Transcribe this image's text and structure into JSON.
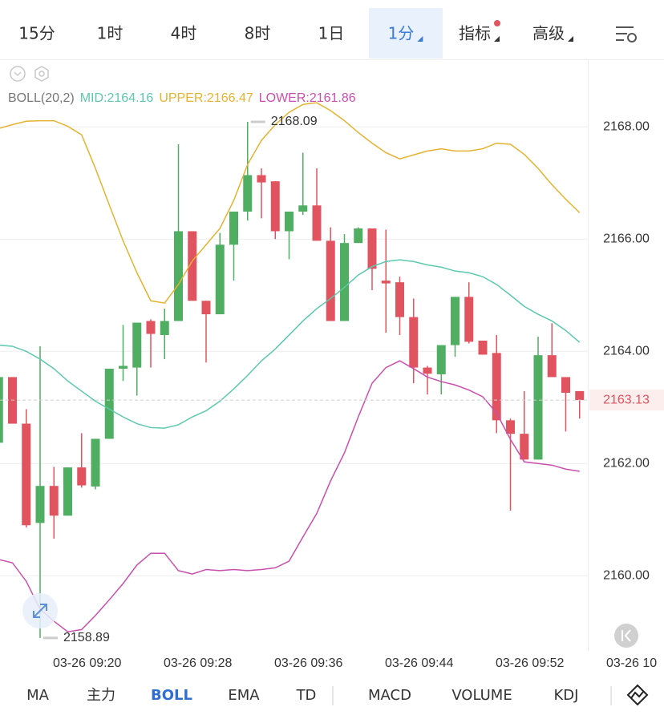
{
  "ui": {
    "top_tabs": [
      {
        "label": "15分"
      },
      {
        "label": "1时"
      },
      {
        "label": "4时"
      },
      {
        "label": "8时"
      },
      {
        "label": "1日"
      },
      {
        "label": "1分",
        "active": true,
        "menu": true
      },
      {
        "label": "指标",
        "menu": true,
        "badge": true
      },
      {
        "label": "高级",
        "menu": true
      }
    ],
    "bottom_tabs": [
      {
        "label": "MA"
      },
      {
        "label": "主力"
      },
      {
        "label": "BOLL",
        "active": true
      },
      {
        "label": "EMA"
      },
      {
        "label": "TD"
      },
      {
        "label": "MACD"
      },
      {
        "label": "VOLUME"
      },
      {
        "label": "KDJ"
      }
    ]
  },
  "chart_data": {
    "type": "candlestick",
    "legend_title": "BOLL(20,2)",
    "categories": [
      null,
      null,
      null,
      null,
      null,
      null,
      null,
      "03-26 09:20",
      null,
      null,
      null,
      null,
      null,
      null,
      null,
      "03-26 09:28",
      null,
      null,
      null,
      null,
      null,
      null,
      null,
      "03-26 09:36",
      null,
      null,
      null,
      null,
      null,
      null,
      null,
      "03-26 09:44",
      null,
      null,
      null,
      null,
      null,
      null,
      null,
      "03-26 09:52",
      null,
      null,
      null,
      null,
      null,
      null,
      null,
      "03-26 10"
    ],
    "open": [
      2162.37,
      2163.54,
      2162.71,
      2160.94,
      2161.6,
      2161.07,
      2161.93,
      2161.59,
      2162.44,
      2163.69,
      2163.71,
      2164.54,
      2164.29,
      2164.54,
      2166.14,
      2164.9,
      2164.66,
      2165.9,
      2166.49,
      2167.14,
      2167.03,
      2166.14,
      2166.49,
      2166.6,
      2165.97,
      2164.54,
      2165.93,
      2166.19,
      2165.26,
      2165.23,
      2164.61,
      2163.71,
      2163.59,
      2164.11,
      2164.97,
      2164.19,
      2163.97,
      2162.77,
      2162.53,
      2162.07,
      2163.93,
      2163.54,
      2163.29,
      null,
      null,
      null,
      null,
      null
    ],
    "high": [
      2163.54,
      2163.54,
      2162.97,
      2164.09,
      2161.94,
      2161.93,
      2162.54,
      2162.44,
      2163.69,
      2164.47,
      2164.51,
      2164.57,
      2164.76,
      2167.69,
      2166.14,
      2164.9,
      2166.11,
      2166.49,
      2168.09,
      2167.26,
      2167.03,
      2166.49,
      2167.54,
      2167.26,
      2166.21,
      2166.09,
      2166.21,
      2166.19,
      2166.17,
      2165.33,
      2164.94,
      2163.74,
      2164.11,
      2164.97,
      2165.23,
      2164.19,
      2164.29,
      2162.8,
      2163.29,
      2164.26,
      2164.5,
      2163.54,
      2163.29,
      null,
      null,
      null,
      null,
      null
    ],
    "low": [
      2162.37,
      2162.71,
      2160.86,
      2158.89,
      2160.66,
      2161.07,
      2161.57,
      2161.54,
      2162.44,
      2163.47,
      2163.21,
      2163.71,
      2163.86,
      2164.54,
      2164.9,
      2163.8,
      2164.66,
      2165.26,
      2166.33,
      2166.37,
      2166.0,
      2165.64,
      2166.43,
      2165.97,
      2164.54,
      2164.54,
      2165.93,
      2165.09,
      2164.33,
      2164.29,
      2163.43,
      2163.23,
      2163.23,
      2163.9,
      2164.14,
      2163.94,
      2162.54,
      2161.16,
      2162.07,
      2162.07,
      2163.54,
      2162.57,
      2162.8,
      null,
      null,
      null,
      null,
      null
    ],
    "close": [
      2163.54,
      2162.71,
      2160.9,
      2161.6,
      2161.07,
      2161.93,
      2161.61,
      2162.44,
      2163.69,
      2163.74,
      2164.51,
      2164.31,
      2164.54,
      2166.14,
      2164.9,
      2164.66,
      2165.9,
      2166.49,
      2167.14,
      2167.01,
      2166.14,
      2166.49,
      2166.6,
      2165.97,
      2164.54,
      2165.93,
      2166.19,
      2165.47,
      2165.21,
      2164.61,
      2163.71,
      2163.6,
      2164.11,
      2164.97,
      2164.17,
      2163.94,
      2162.77,
      2162.53,
      2162.07,
      2163.93,
      2163.54,
      2163.26,
      2163.13,
      null,
      null,
      null,
      null,
      null
    ],
    "up_color": "#4fae62",
    "down_color": "#e0535f",
    "series": [
      {
        "name": "MID",
        "legend": "MID:2164.16",
        "color": "#5cc8ad",
        "values": [
          2164.11,
          2164.09,
          2164.0,
          2163.86,
          2163.69,
          2163.47,
          2163.29,
          2163.11,
          2162.97,
          2162.83,
          2162.71,
          2162.64,
          2162.63,
          2162.69,
          2162.83,
          2162.94,
          2163.11,
          2163.33,
          2163.57,
          2163.83,
          2164.04,
          2164.29,
          2164.54,
          2164.76,
          2164.94,
          2165.14,
          2165.36,
          2165.51,
          2165.6,
          2165.63,
          2165.6,
          2165.54,
          2165.5,
          2165.43,
          2165.4,
          2165.33,
          2165.19,
          2165.0,
          2164.8,
          2164.66,
          2164.54,
          2164.37,
          2164.16,
          null,
          null,
          null,
          null,
          null
        ]
      },
      {
        "name": "UPPER",
        "legend": "UPPER:2166.47",
        "color": "#e5b231",
        "values": [
          2167.97,
          2168.04,
          2168.1,
          2168.11,
          2168.11,
          2168.01,
          2167.86,
          2167.26,
          2166.61,
          2165.97,
          2165.4,
          2164.9,
          2164.86,
          2165.19,
          2165.61,
          2165.9,
          2166.19,
          2166.69,
          2167.33,
          2167.76,
          2168.04,
          2168.26,
          2168.4,
          2168.43,
          2168.29,
          2168.11,
          2167.9,
          2167.71,
          2167.54,
          2167.43,
          2167.5,
          2167.57,
          2167.61,
          2167.57,
          2167.57,
          2167.61,
          2167.71,
          2167.69,
          2167.51,
          2167.26,
          2166.97,
          2166.71,
          2166.47,
          null,
          null,
          null,
          null,
          null
        ]
      },
      {
        "name": "LOWER",
        "legend": "LOWER:2161.86",
        "color": "#c94fae",
        "values": [
          2160.29,
          2160.23,
          2159.9,
          2159.4,
          2159.19,
          2159.0,
          2159.04,
          2159.29,
          2159.57,
          2159.86,
          2160.19,
          2160.4,
          2160.4,
          2160.09,
          2160.03,
          2160.11,
          2160.09,
          2160.11,
          2160.09,
          2160.11,
          2160.14,
          2160.26,
          2160.69,
          2161.11,
          2161.69,
          2162.19,
          2162.83,
          2163.43,
          2163.71,
          2163.83,
          2163.69,
          2163.54,
          2163.46,
          2163.4,
          2163.31,
          2163.19,
          2162.9,
          2162.43,
          2162.03,
          2162.0,
          2161.97,
          2161.9,
          2161.86,
          null,
          null,
          null,
          null,
          null
        ]
      }
    ],
    "ylim": [
      2158.66,
      2169.19
    ],
    "yticks": [
      {
        "value": 2160,
        "label": "2160.00"
      },
      {
        "value": 2162,
        "label": "2162.00"
      },
      {
        "value": 2164,
        "label": "2164.00"
      },
      {
        "value": 2166,
        "label": "2166.00"
      },
      {
        "value": 2168,
        "label": "2168.00"
      }
    ],
    "grid": true,
    "high_marker": 2168.09,
    "low_marker": 2158.89,
    "last_price": 2163.13
  }
}
